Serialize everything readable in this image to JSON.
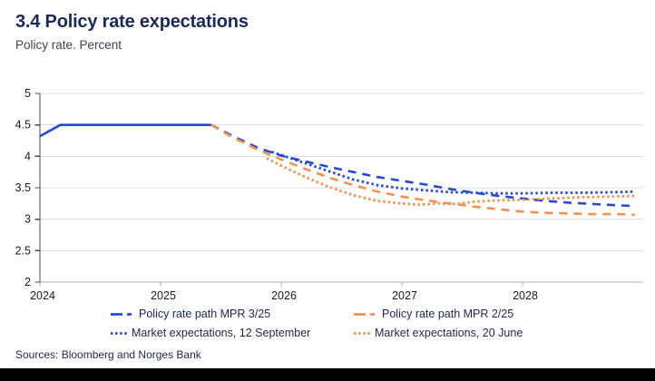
{
  "header": {
    "title": "3.4 Policy rate expectations",
    "subtitle": "Policy rate. Percent"
  },
  "footer": {
    "sources": "Sources: Bloomberg and Norges Bank"
  },
  "colors": {
    "blue": "#2449d2",
    "orange": "#f2914d",
    "navy_text": "#19295c",
    "grid": "#dcdcdc",
    "x_axis": "#b0b0b0",
    "y_axis": "#4d4d4d",
    "tick_label": "#1a1a1a"
  },
  "chart_data": {
    "type": "line",
    "title": "3.4 Policy rate expectations",
    "subtitle": "Policy rate. Percent",
    "xlabel": "",
    "ylabel": "",
    "xlim": [
      2024,
      2029
    ],
    "ylim": [
      2,
      5
    ],
    "yticks": [
      2,
      2.5,
      3,
      3.5,
      4,
      4.5,
      5
    ],
    "ytick_labels": [
      "2",
      "2.5",
      "3",
      "3.5",
      "4",
      "4.5",
      "5"
    ],
    "xticks": [
      2024,
      2025,
      2026,
      2027,
      2028
    ],
    "xtick_labels": [
      "2024",
      "2025",
      "2026",
      "2027",
      "2028"
    ],
    "grid": "horizontal",
    "legend_position": "bottom",
    "series": [
      {
        "name": "Policy rate (historical)",
        "color": "blue",
        "style": "solid",
        "in_legend": false,
        "x": [
          2024.0,
          2024.17,
          2025.3,
          2025.42
        ],
        "y": [
          4.32,
          4.5,
          4.5,
          4.5
        ]
      },
      {
        "name": "Policy rate path MPR 3/25",
        "color": "blue",
        "style": "dashed",
        "in_legend": true,
        "x": [
          2025.42,
          2025.6,
          2025.8,
          2026.0,
          2026.2,
          2026.4,
          2026.6,
          2026.8,
          2027.0,
          2027.2,
          2027.4,
          2027.6,
          2027.8,
          2028.0,
          2028.2,
          2028.4,
          2028.6,
          2028.8,
          2028.93
        ],
        "y": [
          4.5,
          4.32,
          4.14,
          4.01,
          3.92,
          3.83,
          3.75,
          3.67,
          3.61,
          3.55,
          3.48,
          3.42,
          3.37,
          3.33,
          3.29,
          3.26,
          3.24,
          3.22,
          3.21
        ]
      },
      {
        "name": "Policy rate path MPR 2/25",
        "color": "orange",
        "style": "dashed",
        "in_legend": true,
        "x": [
          2025.42,
          2025.6,
          2025.8,
          2026.0,
          2026.2,
          2026.4,
          2026.6,
          2026.8,
          2027.0,
          2027.2,
          2027.4,
          2027.6,
          2027.8,
          2028.0,
          2028.2,
          2028.4,
          2028.6,
          2028.8,
          2028.93
        ],
        "y": [
          4.5,
          4.3,
          4.11,
          3.95,
          3.8,
          3.66,
          3.54,
          3.44,
          3.36,
          3.3,
          3.25,
          3.2,
          3.16,
          3.12,
          3.1,
          3.09,
          3.08,
          3.08,
          3.07
        ]
      },
      {
        "name": "Market expectations, 12 September",
        "color": "blue",
        "style": "dotted",
        "in_legend": true,
        "x": [
          2025.92,
          2026.0,
          2026.2,
          2026.4,
          2026.6,
          2026.8,
          2027.0,
          2027.2,
          2027.4,
          2027.6,
          2027.8,
          2028.0,
          2028.25,
          2028.5,
          2028.75,
          2028.93
        ],
        "y": [
          4.07,
          4.02,
          3.89,
          3.76,
          3.63,
          3.54,
          3.49,
          3.46,
          3.43,
          3.42,
          3.41,
          3.41,
          3.42,
          3.42,
          3.43,
          3.44
        ]
      },
      {
        "name": "Market expectations, 20 June",
        "color": "orange",
        "style": "dotted",
        "in_legend": true,
        "x": [
          2025.88,
          2026.0,
          2026.2,
          2026.4,
          2026.6,
          2026.8,
          2027.0,
          2027.15,
          2027.3,
          2027.45,
          2027.6,
          2027.8,
          2028.0,
          2028.25,
          2028.5,
          2028.75,
          2028.93
        ],
        "y": [
          3.97,
          3.85,
          3.67,
          3.51,
          3.38,
          3.29,
          3.25,
          3.23,
          3.25,
          3.24,
          3.28,
          3.3,
          3.31,
          3.33,
          3.35,
          3.36,
          3.37
        ]
      }
    ],
    "legend": [
      {
        "label": "Policy rate path MPR 3/25",
        "series": 1
      },
      {
        "label": "Policy rate path MPR 2/25",
        "series": 2
      },
      {
        "label": "Market expectations, 12 September",
        "series": 3
      },
      {
        "label": "Market expectations, 20 June",
        "series": 4
      }
    ]
  }
}
